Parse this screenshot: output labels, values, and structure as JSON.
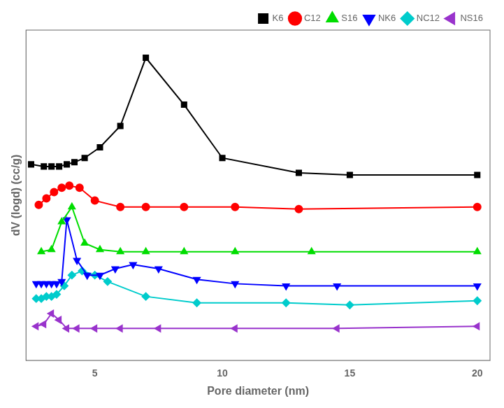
{
  "chart_data": {
    "type": "line",
    "xlabel": "Pore diameter (nm)",
    "ylabel": "dV (logd) (cc/g)",
    "xlim": [
      2.3,
      20.5
    ],
    "ylim": [
      0.0,
      1.55
    ],
    "xticks": [
      5,
      10,
      15,
      20
    ],
    "tick_labels": "x",
    "grid": false,
    "legend": "upper right",
    "series": [
      {
        "name": "K6",
        "color": "#000000",
        "marker": "square",
        "x": [
          2.5,
          3.0,
          3.3,
          3.6,
          3.9,
          4.2,
          4.6,
          5.2,
          6.0,
          7.0,
          8.5,
          10.0,
          13.0,
          15.0,
          20.0
        ],
        "values": [
          0.92,
          0.91,
          0.91,
          0.91,
          0.92,
          0.93,
          0.95,
          1.0,
          1.1,
          1.42,
          1.2,
          0.95,
          0.88,
          0.87,
          0.87
        ]
      },
      {
        "name": "C12",
        "color": "#ff0000",
        "marker": "circle",
        "x": [
          2.8,
          3.1,
          3.4,
          3.7,
          4.0,
          4.4,
          5.0,
          6.0,
          7.0,
          8.5,
          10.5,
          13.0,
          20.0
        ],
        "values": [
          0.73,
          0.76,
          0.79,
          0.81,
          0.82,
          0.81,
          0.75,
          0.72,
          0.72,
          0.72,
          0.72,
          0.71,
          0.72
        ]
      },
      {
        "name": "S16",
        "color": "#00dd00",
        "marker": "triangle_up",
        "x": [
          2.9,
          3.3,
          3.7,
          4.1,
          4.6,
          5.2,
          6.0,
          7.0,
          8.5,
          10.5,
          13.5,
          20.0
        ],
        "values": [
          0.51,
          0.52,
          0.65,
          0.72,
          0.55,
          0.52,
          0.51,
          0.51,
          0.51,
          0.51,
          0.51,
          0.51
        ]
      },
      {
        "name": "NK6",
        "color": "#0000ff",
        "marker": "triangle_down",
        "x": [
          2.7,
          2.9,
          3.1,
          3.3,
          3.5,
          3.7,
          3.9,
          4.3,
          4.7,
          5.2,
          5.8,
          6.5,
          7.5,
          9.0,
          10.5,
          12.5,
          14.5,
          20.0
        ],
        "values": [
          0.36,
          0.36,
          0.36,
          0.36,
          0.36,
          0.37,
          0.66,
          0.47,
          0.4,
          0.4,
          0.43,
          0.45,
          0.43,
          0.38,
          0.36,
          0.35,
          0.35,
          0.35
        ]
      },
      {
        "name": "NC12",
        "color": "#00cccc",
        "marker": "diamond",
        "x": [
          2.7,
          2.9,
          3.1,
          3.3,
          3.5,
          3.8,
          4.1,
          4.5,
          5.0,
          5.5,
          7.0,
          9.0,
          12.5,
          15.0,
          20.0
        ],
        "values": [
          0.29,
          0.29,
          0.3,
          0.3,
          0.31,
          0.35,
          0.4,
          0.42,
          0.4,
          0.37,
          0.3,
          0.27,
          0.27,
          0.26,
          0.28
        ]
      },
      {
        "name": "NS16",
        "color": "#9933cc",
        "marker": "triangle_left",
        "x": [
          2.7,
          3.0,
          3.3,
          3.6,
          3.9,
          4.3,
          5.0,
          6.0,
          7.5,
          10.5,
          14.5,
          20.0
        ],
        "values": [
          0.16,
          0.17,
          0.22,
          0.19,
          0.15,
          0.15,
          0.15,
          0.15,
          0.15,
          0.15,
          0.15,
          0.16
        ]
      }
    ]
  }
}
